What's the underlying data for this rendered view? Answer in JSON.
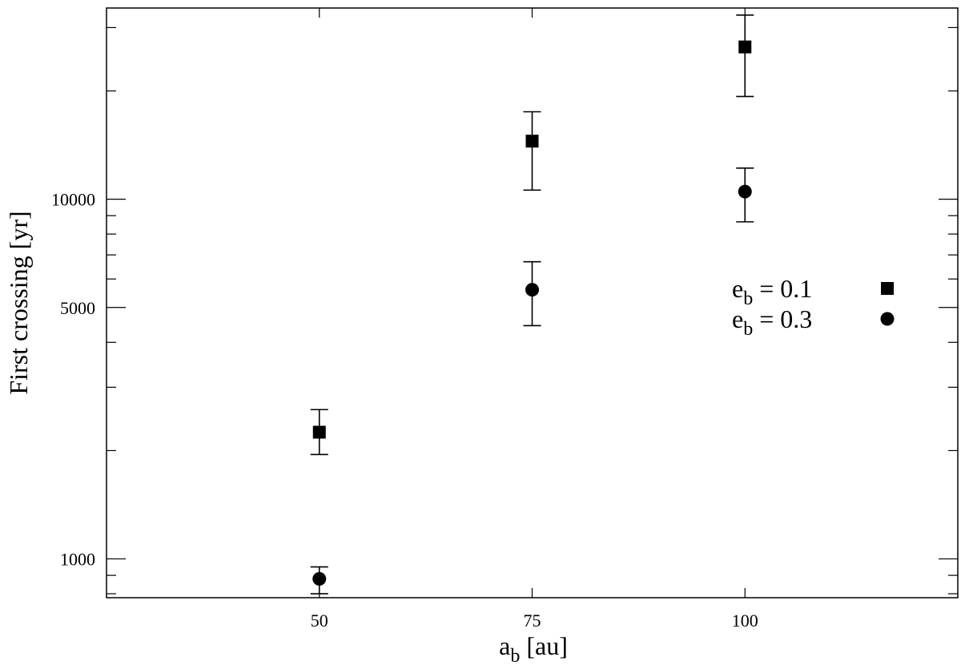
{
  "chart_data": {
    "type": "scatter",
    "xlabel": {
      "main": "a",
      "sub": "b",
      "rest": " [au]"
    },
    "ylabel": "First crossing [yr]",
    "xlim": [
      25,
      125
    ],
    "ylim": [
      780,
      34000
    ],
    "yscale": "log",
    "grid": false,
    "legend_position": "right",
    "x_ticks": [
      50,
      75,
      100
    ],
    "x_tick_labels": [
      "50",
      "75",
      "100"
    ],
    "y_ticks": [
      1000,
      5000,
      10000
    ],
    "y_tick_labels": [
      "1000",
      "5000",
      "10000"
    ],
    "series": [
      {
        "name": "e_b = 0.1",
        "legend": {
          "main": "e",
          "sub": "b",
          "rest": " = 0.1"
        },
        "marker": "square",
        "x": [
          50,
          75,
          100
        ],
        "y": [
          2250,
          14500,
          26500
        ],
        "y_err_low": [
          1950,
          10600,
          19300
        ],
        "y_err_high": [
          2600,
          17500,
          32500
        ]
      },
      {
        "name": "e_b = 0.3",
        "legend": {
          "main": "e",
          "sub": "b",
          "rest": " = 0.3"
        },
        "marker": "circle",
        "x": [
          50,
          75,
          100
        ],
        "y": [
          880,
          5600,
          10500
        ],
        "y_err_low": [
          800,
          4450,
          8650
        ],
        "y_err_high": [
          950,
          6700,
          12200
        ]
      }
    ],
    "colors": {
      "marker": "#000000",
      "axis": "#000000",
      "background": "#ffffff"
    }
  }
}
